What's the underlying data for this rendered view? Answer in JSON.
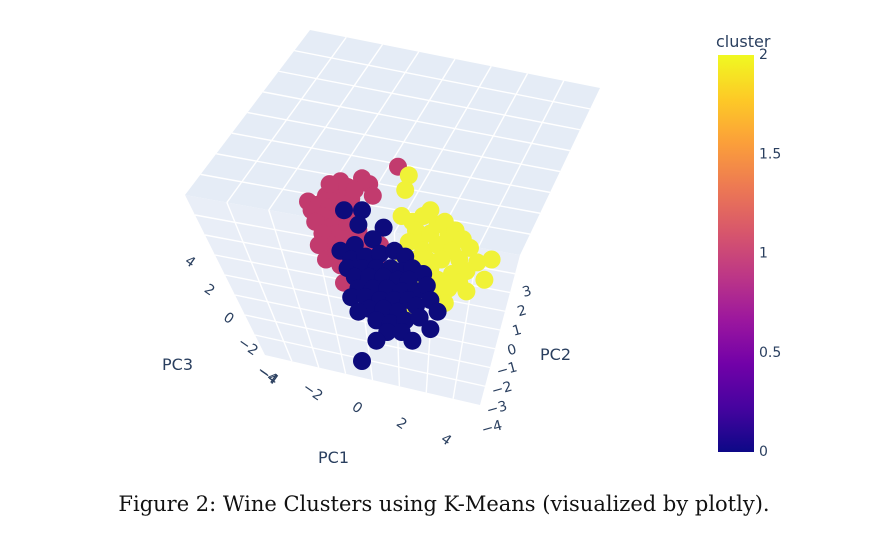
{
  "caption": "Figure 2: Wine Clusters using K-Means (visualized by plotly).",
  "chart_data": {
    "type": "scatter",
    "dimensions": 3,
    "axes": {
      "x": {
        "label": "PC1",
        "ticks": [
          "−4",
          "−2",
          "0",
          "2",
          "4"
        ]
      },
      "y": {
        "label": "PC2",
        "ticks": [
          "3",
          "2",
          "1",
          "0",
          "−1",
          "−2",
          "−3",
          "−4"
        ]
      },
      "z": {
        "label": "PC3",
        "ticks": [
          "4",
          "2",
          "0",
          "−2",
          "−4"
        ]
      }
    },
    "colorbar": {
      "title": "cluster",
      "ticks": [
        "2",
        "1.5",
        "1",
        "0.5",
        "0"
      ],
      "range": [
        0,
        2
      ],
      "colors": [
        "#0d0887",
        "#46039f",
        "#7201a8",
        "#9c179e",
        "#bd3786",
        "#d8576b",
        "#ed7953",
        "#fb9f3a",
        "#fdca26",
        "#f0f921"
      ]
    },
    "clusters": [
      {
        "cluster": 1,
        "color": "#c23b6e"
      },
      {
        "cluster": 2,
        "color": "#f0f237"
      },
      {
        "cluster": 0,
        "color": "#0d0b7c"
      }
    ],
    "points": [
      [
        0.3,
        0.35,
        1
      ],
      [
        0.31,
        0.38,
        1
      ],
      [
        0.33,
        0.36,
        1
      ],
      [
        0.35,
        0.33,
        1
      ],
      [
        0.36,
        0.37,
        1
      ],
      [
        0.38,
        0.32,
        1
      ],
      [
        0.34,
        0.4,
        1
      ],
      [
        0.37,
        0.41,
        1
      ],
      [
        0.39,
        0.35,
        1
      ],
      [
        0.32,
        0.42,
        1
      ],
      [
        0.36,
        0.44,
        1
      ],
      [
        0.4,
        0.39,
        1
      ],
      [
        0.42,
        0.34,
        1
      ],
      [
        0.38,
        0.46,
        1
      ],
      [
        0.34,
        0.46,
        1
      ],
      [
        0.41,
        0.43,
        1
      ],
      [
        0.43,
        0.38,
        1
      ],
      [
        0.37,
        0.5,
        1
      ],
      [
        0.33,
        0.5,
        1
      ],
      [
        0.4,
        0.48,
        1
      ],
      [
        0.44,
        0.45,
        1
      ],
      [
        0.39,
        0.28,
        1
      ],
      [
        0.41,
        0.3,
        1
      ],
      [
        0.45,
        0.27,
        1
      ],
      [
        0.47,
        0.29,
        1
      ],
      [
        0.43,
        0.31,
        1
      ],
      [
        0.36,
        0.29,
        1
      ],
      [
        0.48,
        0.33,
        1
      ],
      [
        0.35,
        0.55,
        1
      ],
      [
        0.38,
        0.53,
        1
      ],
      [
        0.42,
        0.52,
        1
      ],
      [
        0.46,
        0.5,
        1
      ],
      [
        0.45,
        0.55,
        1
      ],
      [
        0.39,
        0.57,
        1
      ],
      [
        0.4,
        0.63,
        1
      ],
      [
        0.5,
        0.5,
        1
      ],
      [
        0.49,
        0.56,
        1
      ],
      [
        0.55,
        0.23,
        1
      ],
      [
        0.58,
        0.26,
        2
      ],
      [
        0.57,
        0.31,
        2
      ],
      [
        0.56,
        0.4,
        2
      ],
      [
        0.59,
        0.42,
        2
      ],
      [
        0.62,
        0.4,
        2
      ],
      [
        0.64,
        0.38,
        2
      ],
      [
        0.6,
        0.45,
        2
      ],
      [
        0.58,
        0.49,
        2
      ],
      [
        0.61,
        0.49,
        2
      ],
      [
        0.64,
        0.46,
        2
      ],
      [
        0.66,
        0.43,
        2
      ],
      [
        0.68,
        0.42,
        2
      ],
      [
        0.62,
        0.52,
        2
      ],
      [
        0.6,
        0.55,
        2
      ],
      [
        0.63,
        0.55,
        2
      ],
      [
        0.66,
        0.5,
        2
      ],
      [
        0.69,
        0.47,
        2
      ],
      [
        0.71,
        0.45,
        2
      ],
      [
        0.73,
        0.48,
        2
      ],
      [
        0.7,
        0.52,
        2
      ],
      [
        0.67,
        0.55,
        2
      ],
      [
        0.64,
        0.58,
        2
      ],
      [
        0.61,
        0.59,
        2
      ],
      [
        0.58,
        0.56,
        2
      ],
      [
        0.56,
        0.53,
        2
      ],
      [
        0.72,
        0.55,
        2
      ],
      [
        0.75,
        0.51,
        2
      ],
      [
        0.77,
        0.56,
        2
      ],
      [
        0.74,
        0.59,
        2
      ],
      [
        0.7,
        0.6,
        2
      ],
      [
        0.66,
        0.62,
        2
      ],
      [
        0.62,
        0.63,
        2
      ],
      [
        0.69,
        0.65,
        2
      ],
      [
        0.72,
        0.63,
        2
      ],
      [
        0.79,
        0.62,
        2
      ],
      [
        0.65,
        0.67,
        2
      ],
      [
        0.6,
        0.66,
        2
      ],
      [
        0.55,
        0.6,
        2
      ],
      [
        0.57,
        0.63,
        2
      ],
      [
        0.68,
        0.7,
        2
      ],
      [
        0.74,
        0.66,
        2
      ],
      [
        0.54,
        0.7,
        2
      ],
      [
        0.58,
        0.73,
        2
      ],
      [
        0.53,
        0.64,
        2
      ],
      [
        0.81,
        0.55,
        2
      ],
      [
        0.4,
        0.38,
        0
      ],
      [
        0.45,
        0.38,
        0
      ],
      [
        0.44,
        0.43,
        0
      ],
      [
        0.51,
        0.44,
        0
      ],
      [
        0.48,
        0.48,
        0
      ],
      [
        0.43,
        0.5,
        0
      ],
      [
        0.39,
        0.52,
        0
      ],
      [
        0.42,
        0.55,
        0
      ],
      [
        0.46,
        0.54,
        0
      ],
      [
        0.5,
        0.53,
        0
      ],
      [
        0.54,
        0.52,
        0
      ],
      [
        0.57,
        0.54,
        0
      ],
      [
        0.41,
        0.58,
        0
      ],
      [
        0.45,
        0.58,
        0
      ],
      [
        0.49,
        0.58,
        0
      ],
      [
        0.53,
        0.58,
        0
      ],
      [
        0.56,
        0.59,
        0
      ],
      [
        0.59,
        0.58,
        0
      ],
      [
        0.62,
        0.6,
        0
      ],
      [
        0.43,
        0.61,
        0
      ],
      [
        0.47,
        0.61,
        0
      ],
      [
        0.51,
        0.61,
        0
      ],
      [
        0.55,
        0.62,
        0
      ],
      [
        0.58,
        0.62,
        0
      ],
      [
        0.44,
        0.65,
        0
      ],
      [
        0.48,
        0.65,
        0
      ],
      [
        0.52,
        0.65,
        0
      ],
      [
        0.56,
        0.66,
        0
      ],
      [
        0.6,
        0.66,
        0
      ],
      [
        0.63,
        0.64,
        0
      ],
      [
        0.42,
        0.68,
        0
      ],
      [
        0.46,
        0.68,
        0
      ],
      [
        0.5,
        0.69,
        0
      ],
      [
        0.54,
        0.69,
        0
      ],
      [
        0.58,
        0.69,
        0
      ],
      [
        0.47,
        0.72,
        0
      ],
      [
        0.51,
        0.72,
        0
      ],
      [
        0.55,
        0.73,
        0
      ],
      [
        0.6,
        0.71,
        0
      ],
      [
        0.64,
        0.69,
        0
      ],
      [
        0.44,
        0.73,
        0
      ],
      [
        0.49,
        0.76,
        0
      ],
      [
        0.53,
        0.77,
        0
      ],
      [
        0.57,
        0.76,
        0
      ],
      [
        0.61,
        0.75,
        0
      ],
      [
        0.52,
        0.8,
        0
      ],
      [
        0.56,
        0.8,
        0
      ],
      [
        0.64,
        0.79,
        0
      ],
      [
        0.66,
        0.73,
        0
      ],
      [
        0.45,
        0.9,
        0
      ],
      [
        0.49,
        0.83,
        0
      ],
      [
        0.59,
        0.83,
        0
      ]
    ]
  }
}
